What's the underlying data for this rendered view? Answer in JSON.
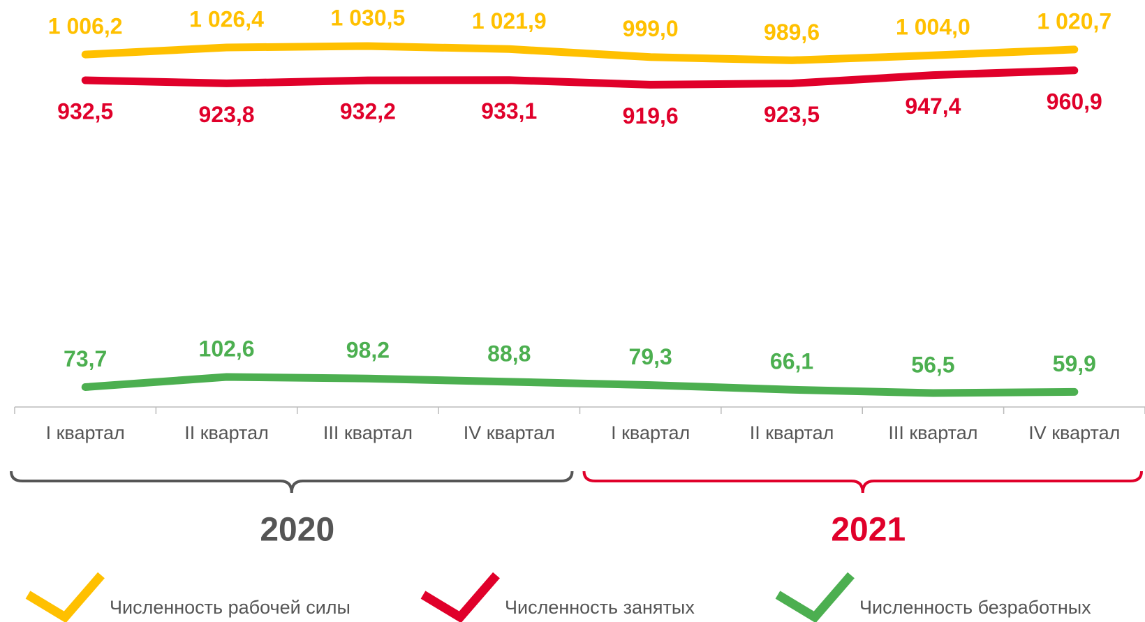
{
  "chart_data": {
    "type": "line",
    "categories": [
      "I квартал",
      "II квартал",
      "III квартал",
      "IV квартал",
      "I квартал",
      "II квартал",
      "III квартал",
      "IV квартал"
    ],
    "series": [
      {
        "name": "Численность рабочей силы",
        "color": "#FFC000",
        "values": [
          1006.2,
          1026.4,
          1030.5,
          1021.9,
          999.0,
          989.6,
          1004.0,
          1020.7
        ],
        "value_labels": [
          "1 006,2",
          "1 026,4",
          "1 030,5",
          "1 021,9",
          "999,0",
          "989,6",
          "1 004,0",
          "1 020,7"
        ]
      },
      {
        "name": "Численность занятых",
        "color": "#E0002A",
        "values": [
          932.5,
          923.8,
          932.2,
          933.1,
          919.6,
          923.5,
          947.4,
          960.9
        ],
        "value_labels": [
          "932,5",
          "923,8",
          "932,2",
          "933,1",
          "919,6",
          "923,5",
          "947,4",
          "960,9"
        ]
      },
      {
        "name": "Численность безработных",
        "color": "#4CAF50",
        "values": [
          73.7,
          102.6,
          98.2,
          88.8,
          79.3,
          66.1,
          56.5,
          59.9
        ],
        "value_labels": [
          "73,7",
          "102,6",
          "98,2",
          "88,8",
          "79,3",
          "66,1",
          "56,5",
          "59,9"
        ]
      }
    ],
    "groups": [
      {
        "label": "2020",
        "color": "#555555"
      },
      {
        "label": "2021",
        "color": "#E0002A"
      }
    ]
  }
}
